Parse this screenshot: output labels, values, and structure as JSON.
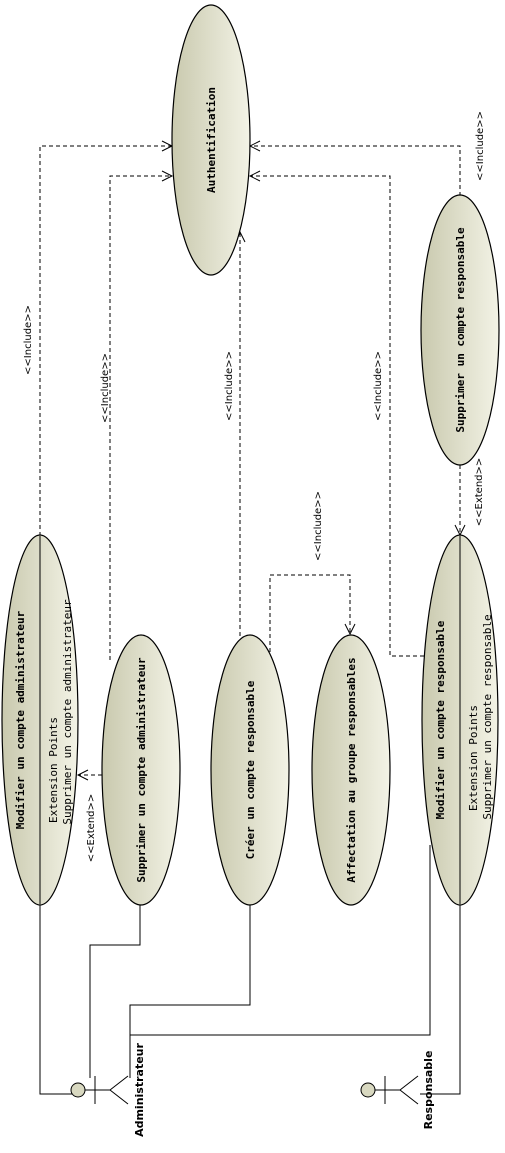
{
  "actors": {
    "admin": "Administrateur",
    "resp": "Responsable"
  },
  "use_cases": {
    "auth": "Authentification",
    "mod_admin": "Modifier un compte administrateur",
    "mod_admin_ep_title": "Extension Points",
    "mod_admin_ep_item": "Supprimer un compte administrateur",
    "supp_admin": "Supprimer un compte administrateur",
    "creer_resp": "Créer un compte responsable",
    "affect": "Affectation au groupe responsables",
    "mod_resp": "Modifier un compte responsable",
    "mod_resp_ep_title": "Extension Points",
    "mod_resp_ep_item": "Supprimer un compte responsable",
    "supp_resp": "Supprimer un compte responsable"
  },
  "stereotypes": {
    "inc1": "<<Include>>",
    "inc2": "<<Include>>",
    "inc3": "<<Include>>",
    "inc4": "<<Include>>",
    "inc5": "<<Include>>",
    "inc6": "<<Include>>",
    "ext1": "<<Extend>>",
    "ext2": "<<Extend>>"
  }
}
